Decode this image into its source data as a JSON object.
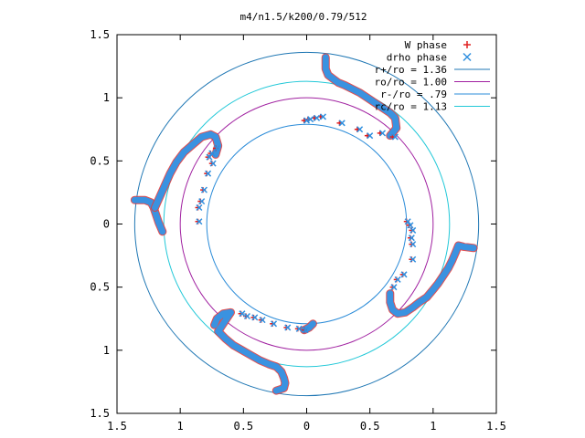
{
  "chart_data": {
    "type": "scatter",
    "title": "m4/n1.5/k200/0.79/512",
    "xlim": [
      -1.5,
      1.5
    ],
    "ylim": [
      -1.5,
      1.5
    ],
    "x_ticks": [
      -1.5,
      -1,
      -0.5,
      0,
      0.5,
      1,
      1.5
    ],
    "y_ticks": [
      -1.5,
      -1,
      -0.5,
      0,
      0.5,
      1,
      1.5
    ],
    "x_tick_labels": [
      "1.5",
      "1",
      "0.5",
      "0",
      "0.5",
      "1",
      "1.5"
    ],
    "y_tick_labels": [
      "1.5",
      "1",
      "0.5",
      "0",
      "0.5",
      "1",
      "1.5"
    ],
    "legend_position": "top-right",
    "circles": [
      {
        "name": "r+/ro = 1.36",
        "radius": 1.36,
        "color": "#1f77b4"
      },
      {
        "name": "ro/ro = 1.00",
        "radius": 1.0,
        "color": "#a020a0"
      },
      {
        "name": "r-/ro = .79",
        "radius": 0.79,
        "color": "#2a8bd8"
      },
      {
        "name": "rc/ro = 1.13",
        "radius": 1.13,
        "color": "#22c8d8"
      }
    ],
    "series": [
      {
        "name": "W phase",
        "marker": "plus",
        "color": "#e02020",
        "points": [
          [
            0.11,
            0.85
          ],
          [
            0.06,
            0.84
          ],
          [
            0.01,
            0.83
          ],
          [
            -0.02,
            0.82
          ],
          [
            0.26,
            0.8
          ],
          [
            0.4,
            0.75
          ],
          [
            0.48,
            0.7
          ],
          [
            0.58,
            0.72
          ],
          [
            0.68,
            0.69
          ],
          [
            -0.72,
            0.6
          ],
          [
            -0.76,
            0.56
          ],
          [
            -0.78,
            0.53
          ],
          [
            -0.75,
            0.48
          ],
          [
            -0.79,
            0.4
          ],
          [
            -0.82,
            0.27
          ],
          [
            -0.84,
            0.18
          ],
          [
            -0.86,
            0.13
          ],
          [
            -0.86,
            0.02
          ],
          [
            0.79,
            0.02
          ],
          [
            0.81,
            -0.01
          ],
          [
            0.83,
            -0.05
          ],
          [
            0.82,
            -0.11
          ],
          [
            0.83,
            -0.16
          ],
          [
            0.83,
            -0.28
          ],
          [
            0.76,
            -0.4
          ],
          [
            0.71,
            -0.44
          ],
          [
            0.68,
            -0.5
          ],
          [
            -0.52,
            -0.71
          ],
          [
            -0.48,
            -0.73
          ],
          [
            -0.42,
            -0.74
          ],
          [
            -0.36,
            -0.76
          ],
          [
            -0.27,
            -0.79
          ],
          [
            -0.16,
            -0.82
          ],
          [
            -0.07,
            -0.83
          ],
          [
            -0.02,
            -0.84
          ]
        ]
      },
      {
        "name": "drho phase",
        "marker": "cross",
        "color": "#2f8fdf",
        "points": [
          [
            0.13,
            0.85
          ],
          [
            0.08,
            0.84
          ],
          [
            0.03,
            0.83
          ],
          [
            0.0,
            0.82
          ],
          [
            0.28,
            0.8
          ],
          [
            0.42,
            0.75
          ],
          [
            0.5,
            0.7
          ],
          [
            0.6,
            0.72
          ],
          [
            0.7,
            0.69
          ],
          [
            -0.71,
            0.6
          ],
          [
            -0.75,
            0.56
          ],
          [
            -0.77,
            0.53
          ],
          [
            -0.74,
            0.48
          ],
          [
            -0.78,
            0.4
          ],
          [
            -0.81,
            0.27
          ],
          [
            -0.83,
            0.18
          ],
          [
            -0.85,
            0.13
          ],
          [
            -0.85,
            0.02
          ],
          [
            0.8,
            0.02
          ],
          [
            0.82,
            -0.01
          ],
          [
            0.84,
            -0.05
          ],
          [
            0.83,
            -0.11
          ],
          [
            0.84,
            -0.16
          ],
          [
            0.84,
            -0.28
          ],
          [
            0.77,
            -0.4
          ],
          [
            0.72,
            -0.44
          ],
          [
            0.69,
            -0.5
          ],
          [
            -0.51,
            -0.71
          ],
          [
            -0.47,
            -0.73
          ],
          [
            -0.41,
            -0.74
          ],
          [
            -0.35,
            -0.76
          ],
          [
            -0.26,
            -0.79
          ],
          [
            -0.15,
            -0.82
          ],
          [
            -0.06,
            -0.83
          ],
          [
            -0.01,
            -0.84
          ]
        ]
      }
    ],
    "bands": [
      [
        [
          0.15,
          1.32
        ],
        [
          0.15,
          1.23
        ],
        [
          0.17,
          1.18
        ],
        [
          0.21,
          1.15
        ],
        [
          0.25,
          1.12
        ],
        [
          0.3,
          1.1
        ],
        [
          0.36,
          1.07
        ],
        [
          0.42,
          1.04
        ],
        [
          0.48,
          1.0
        ],
        [
          0.54,
          0.96
        ],
        [
          0.6,
          0.92
        ],
        [
          0.66,
          0.88
        ],
        [
          0.7,
          0.84
        ],
        [
          0.71,
          0.76
        ],
        [
          0.66,
          0.7
        ]
      ],
      [
        [
          -1.36,
          0.19
        ],
        [
          -1.28,
          0.19
        ],
        [
          -1.23,
          0.17
        ],
        [
          -1.21,
          0.13
        ],
        [
          -1.19,
          0.07
        ],
        [
          -1.17,
          0.01
        ],
        [
          -1.14,
          -0.06
        ]
      ],
      [
        [
          -1.2,
          0.13
        ],
        [
          -1.16,
          0.22
        ],
        [
          -1.12,
          0.31
        ],
        [
          -1.08,
          0.4
        ],
        [
          -1.03,
          0.49
        ],
        [
          -0.97,
          0.57
        ],
        [
          -0.9,
          0.63
        ],
        [
          -0.83,
          0.69
        ],
        [
          -0.76,
          0.71
        ],
        [
          -0.72,
          0.69
        ],
        [
          -0.7,
          0.62
        ],
        [
          -0.72,
          0.55
        ]
      ],
      [
        [
          1.32,
          -0.19
        ],
        [
          1.24,
          -0.18
        ],
        [
          1.2,
          -0.17
        ],
        [
          1.18,
          -0.22
        ],
        [
          1.15,
          -0.29
        ],
        [
          1.12,
          -0.35
        ],
        [
          1.08,
          -0.41
        ],
        [
          1.04,
          -0.47
        ],
        [
          1.0,
          -0.52
        ],
        [
          0.95,
          -0.58
        ],
        [
          0.89,
          -0.62
        ],
        [
          0.84,
          -0.66
        ],
        [
          0.78,
          -0.7
        ],
        [
          0.72,
          -0.71
        ],
        [
          0.68,
          -0.68
        ],
        [
          0.66,
          -0.62
        ],
        [
          0.66,
          -0.55
        ]
      ],
      [
        [
          -0.73,
          -0.8
        ],
        [
          -0.71,
          -0.75
        ],
        [
          -0.66,
          -0.71
        ],
        [
          -0.6,
          -0.7
        ],
        [
          -0.7,
          -0.85
        ],
        [
          -0.64,
          -0.91
        ],
        [
          -0.58,
          -0.96
        ],
        [
          -0.51,
          -1.0
        ],
        [
          -0.44,
          -1.04
        ],
        [
          -0.37,
          -1.08
        ],
        [
          -0.3,
          -1.11
        ],
        [
          -0.24,
          -1.13
        ],
        [
          -0.2,
          -1.17
        ],
        [
          -0.18,
          -1.22
        ],
        [
          -0.17,
          -1.26
        ],
        [
          -0.18,
          -1.3
        ],
        [
          -0.24,
          -1.32
        ]
      ],
      [
        [
          0.05,
          -0.79
        ],
        [
          0.02,
          -0.82
        ],
        [
          -0.02,
          -0.84
        ]
      ]
    ]
  },
  "legend": [
    {
      "label": "W phase",
      "kind": "plus",
      "color": "#e02020"
    },
    {
      "label": "drho phase",
      "kind": "cross",
      "color": "#2f8fdf"
    },
    {
      "label": "r+/ro = 1.36",
      "kind": "line",
      "color": "#1f77b4"
    },
    {
      "label": "ro/ro = 1.00",
      "kind": "line",
      "color": "#a020a0"
    },
    {
      "label": "r-/ro = .79",
      "kind": "line",
      "color": "#2a8bd8"
    },
    {
      "label": "rc/ro = 1.13",
      "kind": "line",
      "color": "#22c8d8"
    }
  ]
}
